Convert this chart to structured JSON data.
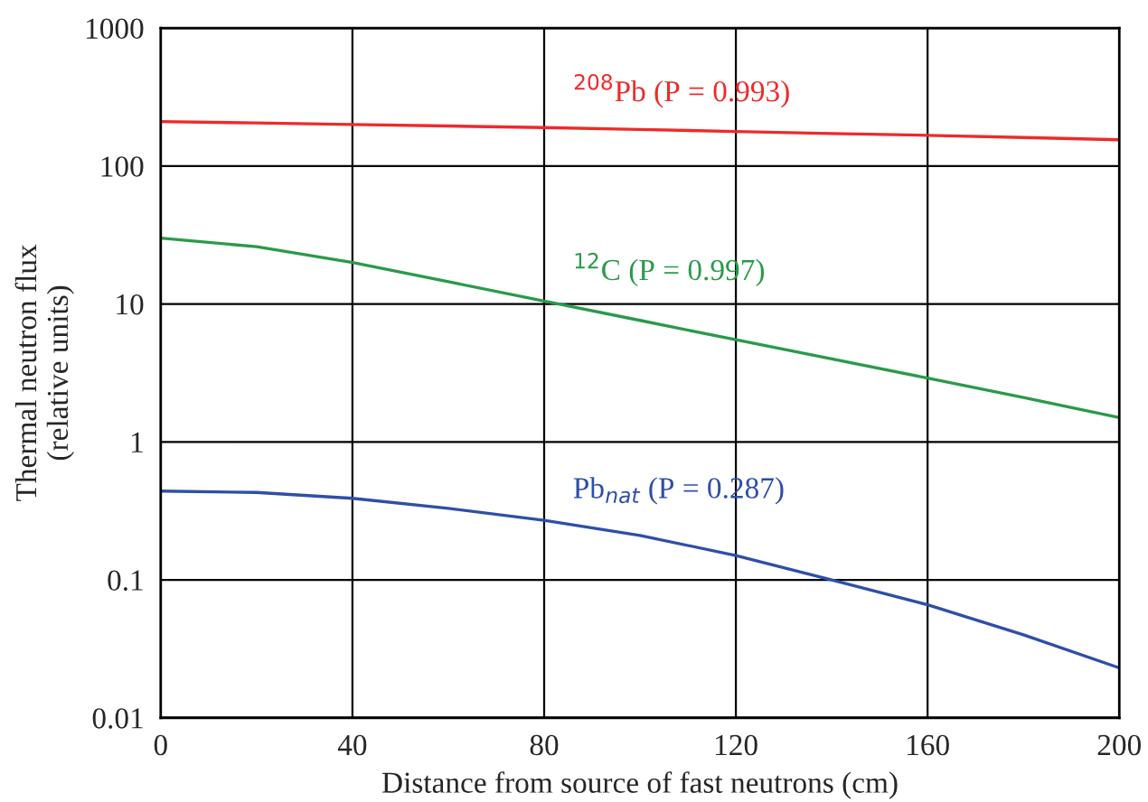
{
  "chart_data": {
    "type": "line",
    "xlabel": "Distance from source of fast neutrons (cm)",
    "ylabel": "Thermal neutron flux\n(relative units)",
    "x": [
      0,
      20,
      40,
      60,
      80,
      100,
      120,
      140,
      160,
      180,
      200
    ],
    "series": [
      {
        "name": "$^{208}$Pb (P = 0.993)",
        "color": "#ee2a2a",
        "values": [
          210,
          205,
          200,
          195,
          190,
          184,
          178,
          172,
          167,
          161,
          155
        ]
      },
      {
        "name": "$^{12}$C (P = 0.997)",
        "color": "#2a9a4a",
        "values": [
          30,
          26,
          20,
          14.5,
          10.5,
          7.6,
          5.5,
          4.0,
          2.9,
          2.1,
          1.5
        ]
      },
      {
        "name": "Pb$_{nat}$ (P = 0.287)",
        "color": "#2e4fa8",
        "values": [
          0.44,
          0.43,
          0.39,
          0.33,
          0.27,
          0.21,
          0.15,
          0.1,
          0.066,
          0.04,
          0.023
        ]
      }
    ],
    "xlim": [
      0,
      200
    ],
    "xticks": [
      0,
      40,
      80,
      120,
      160,
      200
    ],
    "ylim": [
      0.01,
      1000
    ],
    "yticks": [
      0.01,
      0.1,
      1,
      10,
      100,
      1000
    ],
    "log": "y",
    "grid": true,
    "legend": false,
    "marker": "none",
    "line_style": "solid"
  }
}
